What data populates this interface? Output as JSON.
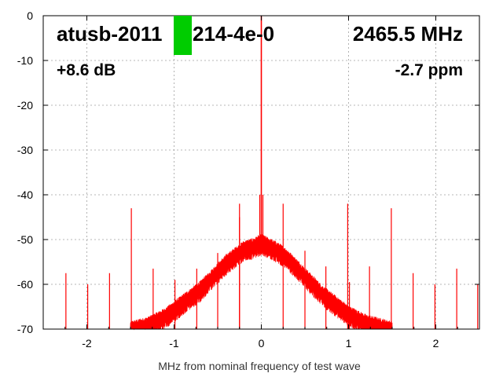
{
  "chart_data": {
    "type": "line",
    "title_left": "atusb-2011",
    "title_right_part": "214-4e-0",
    "frequency_label": "2465.5 MHz",
    "gain_label": "+8.6 dB",
    "ppm_label": "-2.7 ppm",
    "xlabel": "MHz from nominal frequency of test wave",
    "ylabel": "",
    "xlim": [
      -2.5,
      2.5
    ],
    "ylim": [
      -70,
      0
    ],
    "x_ticks": [
      -2,
      -1,
      0,
      1,
      2
    ],
    "x_tick_labels": [
      "-2",
      "-1",
      "0",
      "1",
      "2"
    ],
    "y_ticks": [
      0,
      -10,
      -20,
      -30,
      -40,
      -50,
      -60,
      -70
    ],
    "y_tick_labels": [
      "0",
      "-10",
      "-20",
      "-30",
      "-40",
      "-50",
      "-60",
      "-70"
    ],
    "grid": true,
    "series_color": "#ff0000",
    "marker_color": "#00cc00",
    "carrier": {
      "x": 0.0,
      "y": 0
    },
    "noise_envelope": {
      "x": [
        -1.5,
        -1.4,
        -1.3,
        -1.2,
        -1.1,
        -1.0,
        -0.9,
        -0.8,
        -0.7,
        -0.6,
        -0.5,
        -0.4,
        -0.3,
        -0.2,
        -0.1,
        0.0,
        0.1,
        0.2,
        0.3,
        0.4,
        0.5,
        0.6,
        0.7,
        0.8,
        0.9,
        1.0,
        1.1,
        1.2,
        1.3,
        1.4,
        1.5
      ],
      "y": [
        -70,
        -69.5,
        -69,
        -68,
        -67,
        -65.5,
        -64,
        -62.5,
        -61,
        -59,
        -57,
        -55,
        -53.5,
        -52,
        -51.5,
        -50.5,
        -51.5,
        -52.5,
        -54,
        -56,
        -58,
        -60,
        -62,
        -63.5,
        -65,
        -66.5,
        -67.5,
        -68.5,
        -69,
        -69.5,
        -70
      ]
    },
    "spurs": [
      {
        "x": -2.24,
        "y": -57.5
      },
      {
        "x": -1.99,
        "y": -60.0
      },
      {
        "x": -1.74,
        "y": -57.5
      },
      {
        "x": -1.49,
        "y": -43.0
      },
      {
        "x": -1.24,
        "y": -56.5
      },
      {
        "x": -0.99,
        "y": -59.0
      },
      {
        "x": -0.74,
        "y": -56.5
      },
      {
        "x": -0.5,
        "y": -53.0
      },
      {
        "x": -0.25,
        "y": -45.0
      },
      {
        "x": -0.25,
        "y": -42.0
      },
      {
        "x": 0.25,
        "y": -42.0
      },
      {
        "x": 0.5,
        "y": -52.5
      },
      {
        "x": 0.74,
        "y": -56.0
      },
      {
        "x": 0.99,
        "y": -42.0
      },
      {
        "x": 1.01,
        "y": -59.5
      },
      {
        "x": 1.24,
        "y": -56.0
      },
      {
        "x": 1.49,
        "y": -43.0
      },
      {
        "x": 1.74,
        "y": -57.5
      },
      {
        "x": 1.99,
        "y": -60.0
      },
      {
        "x": 2.24,
        "y": -56.5
      },
      {
        "x": 2.48,
        "y": -60.0
      }
    ]
  }
}
